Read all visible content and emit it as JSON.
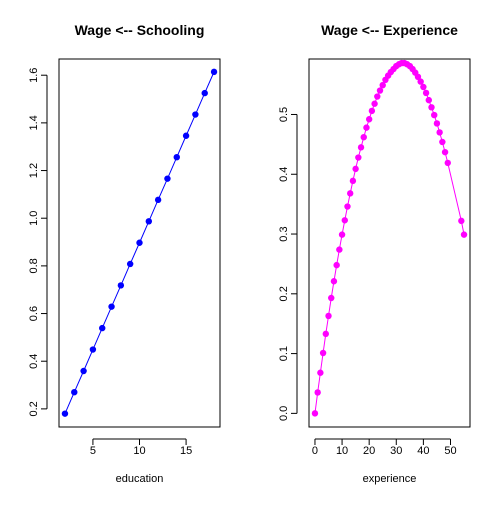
{
  "chart_data": [
    {
      "type": "line",
      "title": "Wage <-- Schooling",
      "xlabel": "education",
      "ylabel": "",
      "xlim": [
        1.36,
        18.64
      ],
      "ylim": [
        0.124,
        1.668
      ],
      "xticks": [
        5,
        10,
        15
      ],
      "yticks": [
        0.2,
        0.4,
        0.6,
        0.8,
        1.0,
        1.2,
        1.4,
        1.6
      ],
      "ytick_labels": [
        "0.2",
        "0.4",
        "0.6",
        "0.8",
        "1.0",
        "1.2",
        "1.4",
        "1.6"
      ],
      "color": "#0000ff",
      "x": [
        2,
        3,
        4,
        5,
        6,
        7,
        8,
        9,
        10,
        11,
        12,
        13,
        14,
        15,
        16,
        17,
        18
      ],
      "y": [
        0.18,
        0.27,
        0.359,
        0.449,
        0.539,
        0.629,
        0.718,
        0.808,
        0.897,
        0.987,
        1.077,
        1.166,
        1.256,
        1.346,
        1.435,
        1.525,
        1.614
      ]
    },
    {
      "type": "line",
      "title": "Wage <-- Experience",
      "xlabel": "experience",
      "ylabel": "",
      "xlim": [
        -2.2,
        57.2
      ],
      "ylim": [
        -0.0228,
        0.5928
      ],
      "xticks": [
        0,
        10,
        20,
        30,
        40,
        50
      ],
      "yticks": [
        0.0,
        0.1,
        0.2,
        0.3,
        0.4,
        0.5
      ],
      "ytick_labels": [
        "0.0",
        "0.1",
        "0.2",
        "0.3",
        "0.4",
        "0.5"
      ],
      "color": "#ff00ff",
      "x": [
        0,
        1,
        2,
        3,
        4,
        5,
        6,
        7,
        8,
        9,
        10,
        11,
        12,
        13,
        14,
        15,
        16,
        17,
        18,
        19,
        20,
        21,
        22,
        23,
        24,
        25,
        26,
        27,
        28,
        29,
        30,
        31,
        32,
        33,
        34,
        35,
        36,
        37,
        38,
        39,
        40,
        41,
        42,
        43,
        44,
        45,
        46,
        47,
        48,
        49,
        54,
        55
      ],
      "y": [
        0.0,
        0.035,
        0.068,
        0.101,
        0.133,
        0.163,
        0.193,
        0.221,
        0.248,
        0.274,
        0.299,
        0.323,
        0.346,
        0.368,
        0.389,
        0.409,
        0.428,
        0.445,
        0.462,
        0.478,
        0.492,
        0.506,
        0.518,
        0.53,
        0.54,
        0.549,
        0.558,
        0.565,
        0.571,
        0.576,
        0.581,
        0.584,
        0.586,
        0.586,
        0.584,
        0.581,
        0.576,
        0.57,
        0.563,
        0.555,
        0.546,
        0.536,
        0.524,
        0.512,
        0.499,
        0.485,
        0.47,
        0.454,
        0.437,
        0.419,
        0.322,
        0.299
      ]
    }
  ]
}
